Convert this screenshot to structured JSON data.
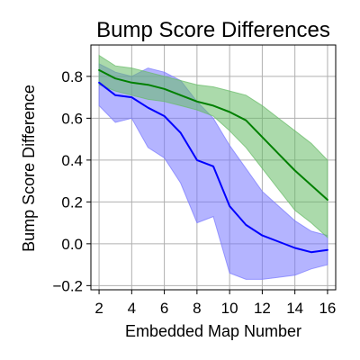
{
  "chart_data": {
    "type": "line",
    "title": "Bump Score Differences",
    "xlabel": "Embedded Map Number",
    "ylabel": "Bump Score Difference",
    "xlim": [
      1.5,
      16.5
    ],
    "ylim": [
      -0.22,
      0.95
    ],
    "xticks": [
      2,
      4,
      6,
      8,
      10,
      12,
      14,
      16
    ],
    "yticks": [
      -0.2,
      0.0,
      0.2,
      0.4,
      0.6,
      0.8
    ],
    "ytick_labels": [
      "−0.2",
      "0.0",
      "0.2",
      "0.4",
      "0.6",
      "0.8"
    ],
    "grid": true,
    "x": [
      2,
      3,
      4,
      5,
      6,
      7,
      8,
      9,
      10,
      11,
      12,
      13,
      14,
      15,
      16
    ],
    "series": [
      {
        "color": "#0000ff",
        "band_color": "#7777ff",
        "values": [
          0.77,
          0.71,
          0.7,
          0.65,
          0.61,
          0.53,
          0.4,
          0.37,
          0.18,
          0.09,
          0.04,
          0.01,
          -0.02,
          -0.04,
          -0.03
        ],
        "upper": [
          0.86,
          0.82,
          0.8,
          0.84,
          0.82,
          0.78,
          0.68,
          0.6,
          0.47,
          0.36,
          0.25,
          0.18,
          0.11,
          0.06,
          0.04
        ],
        "lower": [
          0.66,
          0.58,
          0.6,
          0.46,
          0.41,
          0.29,
          0.1,
          0.13,
          -0.14,
          -0.17,
          -0.17,
          -0.16,
          -0.15,
          -0.12,
          -0.1
        ]
      },
      {
        "color": "#008000",
        "band_color": "#66bb66",
        "values": [
          0.83,
          0.79,
          0.77,
          0.76,
          0.74,
          0.71,
          0.68,
          0.66,
          0.63,
          0.59,
          0.51,
          0.43,
          0.35,
          0.28,
          0.21
        ],
        "upper": [
          0.9,
          0.85,
          0.84,
          0.82,
          0.8,
          0.78,
          0.76,
          0.75,
          0.73,
          0.71,
          0.66,
          0.6,
          0.54,
          0.48,
          0.4
        ],
        "lower": [
          0.76,
          0.73,
          0.71,
          0.69,
          0.68,
          0.66,
          0.64,
          0.61,
          0.54,
          0.46,
          0.36,
          0.26,
          0.16,
          0.1,
          0.03
        ]
      }
    ]
  }
}
